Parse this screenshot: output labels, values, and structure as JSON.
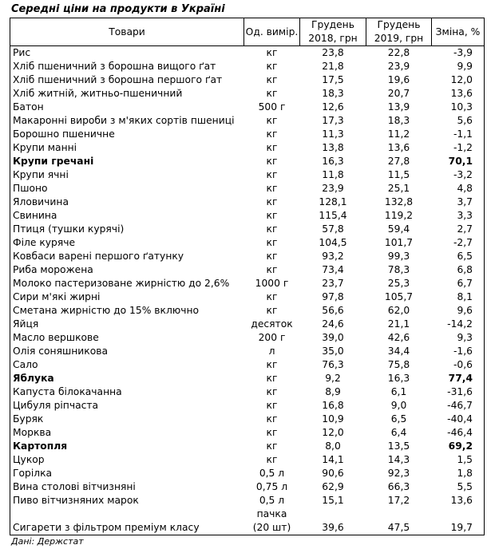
{
  "title": "Середні ціни на продукти в Україні",
  "headers": {
    "product": "Товари",
    "unit": "Од. вимір.",
    "dec2018": "Грудень 2018, грн",
    "dec2019": "Грудень 2019, грн",
    "change": "Зміна, %"
  },
  "rows": [
    {
      "name": "Рис",
      "unit": "кг",
      "p2018": "23,8",
      "p2019": "22,8",
      "change": "-3,9",
      "bold": false
    },
    {
      "name": "Хліб пшеничний з борошна вищого ґат",
      "unit": "кг",
      "p2018": "21,8",
      "p2019": "23,9",
      "change": "9,9",
      "bold": false
    },
    {
      "name": "Хліб пшеничний з борошна першого ґат",
      "unit": "кг",
      "p2018": "17,5",
      "p2019": "19,6",
      "change": "12,0",
      "bold": false
    },
    {
      "name": "Хліб житній, житньо-пшеничний",
      "unit": "кг",
      "p2018": "18,3",
      "p2019": "20,7",
      "change": "13,6",
      "bold": false
    },
    {
      "name": "Батон",
      "unit": "500 г",
      "p2018": "12,6",
      "p2019": "13,9",
      "change": "10,3",
      "bold": false
    },
    {
      "name": "Макаронні вироби з м'яких сортів пшениці",
      "unit": "кг",
      "p2018": "17,3",
      "p2019": "18,3",
      "change": "5,6",
      "bold": false
    },
    {
      "name": "Борошно пшеничне",
      "unit": "кг",
      "p2018": "11,3",
      "p2019": "11,2",
      "change": "-1,1",
      "bold": false
    },
    {
      "name": "Крупи манні",
      "unit": "кг",
      "p2018": "13,8",
      "p2019": "13,6",
      "change": "-1,2",
      "bold": false
    },
    {
      "name": "Крупи гречані",
      "unit": "кг",
      "p2018": "16,3",
      "p2019": "27,8",
      "change": "70,1",
      "bold": true
    },
    {
      "name": "Крупи ячні",
      "unit": "кг",
      "p2018": "11,8",
      "p2019": "11,5",
      "change": "-3,2",
      "bold": false
    },
    {
      "name": "Пшоно",
      "unit": "кг",
      "p2018": "23,9",
      "p2019": "25,1",
      "change": "4,8",
      "bold": false
    },
    {
      "name": "Яловичина",
      "unit": "кг",
      "p2018": "128,1",
      "p2019": "132,8",
      "change": "3,7",
      "bold": false
    },
    {
      "name": "Свинина",
      "unit": "кг",
      "p2018": "115,4",
      "p2019": "119,2",
      "change": "3,3",
      "bold": false
    },
    {
      "name": "Птиця (тушки курячі)",
      "unit": "кг",
      "p2018": "57,8",
      "p2019": "59,4",
      "change": "2,7",
      "bold": false
    },
    {
      "name": "Філе куряче",
      "unit": "кг",
      "p2018": "104,5",
      "p2019": "101,7",
      "change": "-2,7",
      "bold": false
    },
    {
      "name": "Ковбаси варені першого ґатунку",
      "unit": "кг",
      "p2018": "93,2",
      "p2019": "99,3",
      "change": "6,5",
      "bold": false
    },
    {
      "name": "Риба морожена",
      "unit": "кг",
      "p2018": "73,4",
      "p2019": "78,3",
      "change": "6,8",
      "bold": false
    },
    {
      "name": "Молоко пастеризоване жирністю до 2,6%",
      "unit": "1000 г",
      "p2018": "23,7",
      "p2019": "25,3",
      "change": "6,7",
      "bold": false
    },
    {
      "name": "Сири м'які жирні",
      "unit": "кг",
      "p2018": "97,8",
      "p2019": "105,7",
      "change": "8,1",
      "bold": false
    },
    {
      "name": "Сметана жирністю до 15% включно",
      "unit": "кг",
      "p2018": "56,6",
      "p2019": "62,0",
      "change": "9,6",
      "bold": false
    },
    {
      "name": "Яйця",
      "unit": "десяток",
      "p2018": "24,6",
      "p2019": "21,1",
      "change": "-14,2",
      "bold": false
    },
    {
      "name": "Масло вершкове",
      "unit": "200 г",
      "p2018": "39,0",
      "p2019": "42,6",
      "change": "9,3",
      "bold": false
    },
    {
      "name": "Олія соняшникова",
      "unit": "л",
      "p2018": "35,0",
      "p2019": "34,4",
      "change": "-1,6",
      "bold": false
    },
    {
      "name": "Сало",
      "unit": "кг",
      "p2018": "76,3",
      "p2019": "75,8",
      "change": "-0,6",
      "bold": false
    },
    {
      "name": "Яблука",
      "unit": "кг",
      "p2018": "9,2",
      "p2019": "16,3",
      "change": "77,4",
      "bold": true
    },
    {
      "name": "Капуста білокачанна",
      "unit": "кг",
      "p2018": "8,9",
      "p2019": "6,1",
      "change": "-31,6",
      "bold": false
    },
    {
      "name": "Цибуля ріпчаста",
      "unit": "кг",
      "p2018": "16,8",
      "p2019": "9,0",
      "change": "-46,7",
      "bold": false
    },
    {
      "name": "Буряк",
      "unit": "кг",
      "p2018": "10,9",
      "p2019": "6,5",
      "change": "-40,4",
      "bold": false
    },
    {
      "name": "Морква",
      "unit": "кг",
      "p2018": "12,0",
      "p2019": "6,4",
      "change": "-46,4",
      "bold": false
    },
    {
      "name": "Картопля",
      "unit": "кг",
      "p2018": "8,0",
      "p2019": "13,5",
      "change": "69,2",
      "bold": true
    },
    {
      "name": "Цукор",
      "unit": "кг",
      "p2018": "14,1",
      "p2019": "14,3",
      "change": "1,5",
      "bold": false
    },
    {
      "name": "Горілка",
      "unit": "0,5 л",
      "p2018": "90,6",
      "p2019": "92,3",
      "change": "1,8",
      "bold": false
    },
    {
      "name": "Вина столові вітчизняні",
      "unit": "0,75 л",
      "p2018": "62,9",
      "p2019": "66,3",
      "change": "5,5",
      "bold": false
    },
    {
      "name": "Пиво вітчизняних марок",
      "unit": "0,5 л",
      "p2018": "15,1",
      "p2019": "17,2",
      "change": "13,6",
      "bold": false
    },
    {
      "name": "Сигарети з фільтром преміум класу",
      "unit": "пачка (20 шт)",
      "unit_line1": "пачка",
      "unit_line2": "(20 шт)",
      "p2018": "39,6",
      "p2019": "47,5",
      "change": "19,7",
      "bold": false
    }
  ],
  "source": "Дані: Держстат"
}
